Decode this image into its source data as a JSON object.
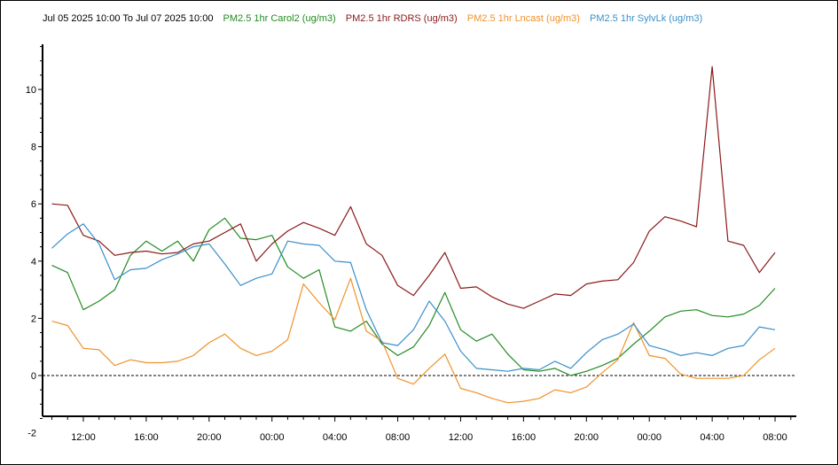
{
  "header": {
    "range": "Jul 05 2025 10:00 To Jul 07 2025 10:00"
  },
  "chart_data": {
    "type": "line",
    "title": "Jul 05 2025 10:00 To Jul 07 2025 10:00",
    "xlabel": "",
    "ylabel": "",
    "x_hours": [
      0,
      1,
      2,
      3,
      4,
      5,
      6,
      7,
      8,
      9,
      10,
      11,
      12,
      13,
      14,
      15,
      16,
      17,
      18,
      19,
      20,
      21,
      22,
      23,
      24,
      25,
      26,
      27,
      28,
      29,
      30,
      31,
      32,
      33,
      34,
      35,
      36,
      37,
      38,
      39,
      40,
      41,
      42,
      43,
      44,
      45,
      46,
      47
    ],
    "x_tick_labels": [
      "12:00",
      "16:00",
      "20:00",
      "00:00",
      "04:00",
      "08:00",
      "12:00",
      "16:00",
      "20:00",
      "00:00",
      "04:00",
      "08:00"
    ],
    "x_tick_hours": [
      2,
      6,
      10,
      14,
      18,
      22,
      26,
      30,
      34,
      38,
      42,
      46
    ],
    "y_ticks": [
      -2,
      0,
      2,
      4,
      6,
      8,
      10
    ],
    "ylim": [
      -2,
      11.5
    ],
    "xlim_hours": [
      0,
      48
    ],
    "zero_line": "dashed",
    "legend": "top",
    "series": [
      {
        "name": "PM2.5 1hr Carol2 (ug/m3)",
        "color": "#228b22",
        "values": [
          3.85,
          3.6,
          2.3,
          2.6,
          3.0,
          4.2,
          4.7,
          4.35,
          4.7,
          4.0,
          5.1,
          5.5,
          4.8,
          4.75,
          4.9,
          3.8,
          3.4,
          3.7,
          1.7,
          1.55,
          1.9,
          1.1,
          0.7,
          1.0,
          1.75,
          2.9,
          1.6,
          1.2,
          1.45,
          0.75,
          0.2,
          0.15,
          0.25,
          0.0,
          0.15,
          0.35,
          0.6,
          1.1,
          1.55,
          2.05,
          2.25,
          2.3,
          2.1,
          2.05,
          2.15,
          2.45,
          3.05,
          null
        ]
      },
      {
        "name": "PM2.5 1hr RDRS (ug/m3)",
        "color": "#8b1a1a",
        "values": [
          6.0,
          5.95,
          4.9,
          4.7,
          4.2,
          4.3,
          4.35,
          4.25,
          4.3,
          4.6,
          4.7,
          5.0,
          5.3,
          4.0,
          4.6,
          5.05,
          5.35,
          5.15,
          4.9,
          5.9,
          4.6,
          4.2,
          3.15,
          2.8,
          3.5,
          4.3,
          3.05,
          3.1,
          2.75,
          2.5,
          2.35,
          2.6,
          2.85,
          2.8,
          3.2,
          3.3,
          3.35,
          3.95,
          5.05,
          5.55,
          5.4,
          5.2,
          10.8,
          4.7,
          4.55,
          3.6,
          4.3,
          null
        ]
      },
      {
        "name": "PM2.5 1hr Lncast (ug/m3)",
        "color": "#f0922a",
        "values": [
          1.9,
          1.75,
          0.95,
          0.9,
          0.35,
          0.55,
          0.45,
          0.45,
          0.5,
          0.7,
          1.15,
          1.45,
          0.95,
          0.7,
          0.85,
          1.25,
          3.2,
          2.55,
          1.95,
          3.4,
          1.55,
          1.2,
          -0.1,
          -0.3,
          0.25,
          0.75,
          -0.45,
          -0.6,
          -0.8,
          -0.95,
          -0.9,
          -0.8,
          -0.5,
          -0.6,
          -0.4,
          0.1,
          0.55,
          1.85,
          0.7,
          0.6,
          0.05,
          -0.1,
          -0.1,
          -0.1,
          0.0,
          0.55,
          0.95,
          null
        ]
      },
      {
        "name": "PM2.5 1hr SylvLk (ug/m3)",
        "color": "#3a8fc8",
        "values": [
          4.45,
          4.95,
          5.3,
          4.6,
          3.35,
          3.7,
          3.75,
          4.05,
          4.25,
          4.5,
          4.6,
          3.9,
          3.15,
          3.4,
          3.55,
          4.7,
          4.6,
          4.55,
          4.0,
          3.95,
          2.3,
          1.15,
          1.05,
          1.6,
          2.6,
          1.9,
          0.85,
          0.25,
          0.2,
          0.15,
          0.25,
          0.2,
          0.5,
          0.25,
          0.8,
          1.25,
          1.45,
          1.8,
          1.05,
          0.9,
          0.7,
          0.8,
          0.7,
          0.95,
          1.05,
          1.7,
          1.6,
          null
        ]
      }
    ]
  }
}
